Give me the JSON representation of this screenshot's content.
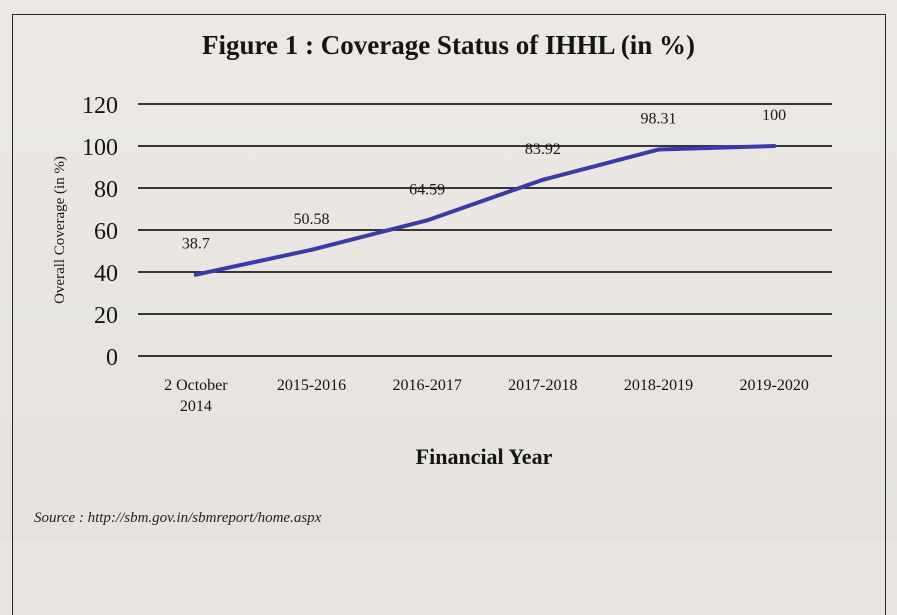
{
  "page": {
    "source": "Source : http://sbm.gov.in/sbmreport/home.aspx"
  },
  "chart_data": {
    "type": "line",
    "title": "Figure 1 : Coverage Status of IHHL (in %)",
    "xlabel": "Financial Year",
    "ylabel": "Overall Coverage (in %)",
    "categories": [
      "2 October\n2014",
      "2015-2016",
      "2016-2017",
      "2017-2018",
      "2018-2019",
      "2019-2020"
    ],
    "values": [
      38.7,
      50.58,
      64.59,
      83.92,
      98.31,
      100
    ],
    "data_labels": [
      "38.7",
      "50.58",
      "64.59",
      "83.92",
      "98.31",
      "100"
    ],
    "y_ticks": [
      "0",
      "20",
      "40",
      "60",
      "80",
      "100",
      "120"
    ],
    "ylim": [
      0,
      120
    ],
    "grid": true,
    "line_color": "#3a3aa8"
  }
}
